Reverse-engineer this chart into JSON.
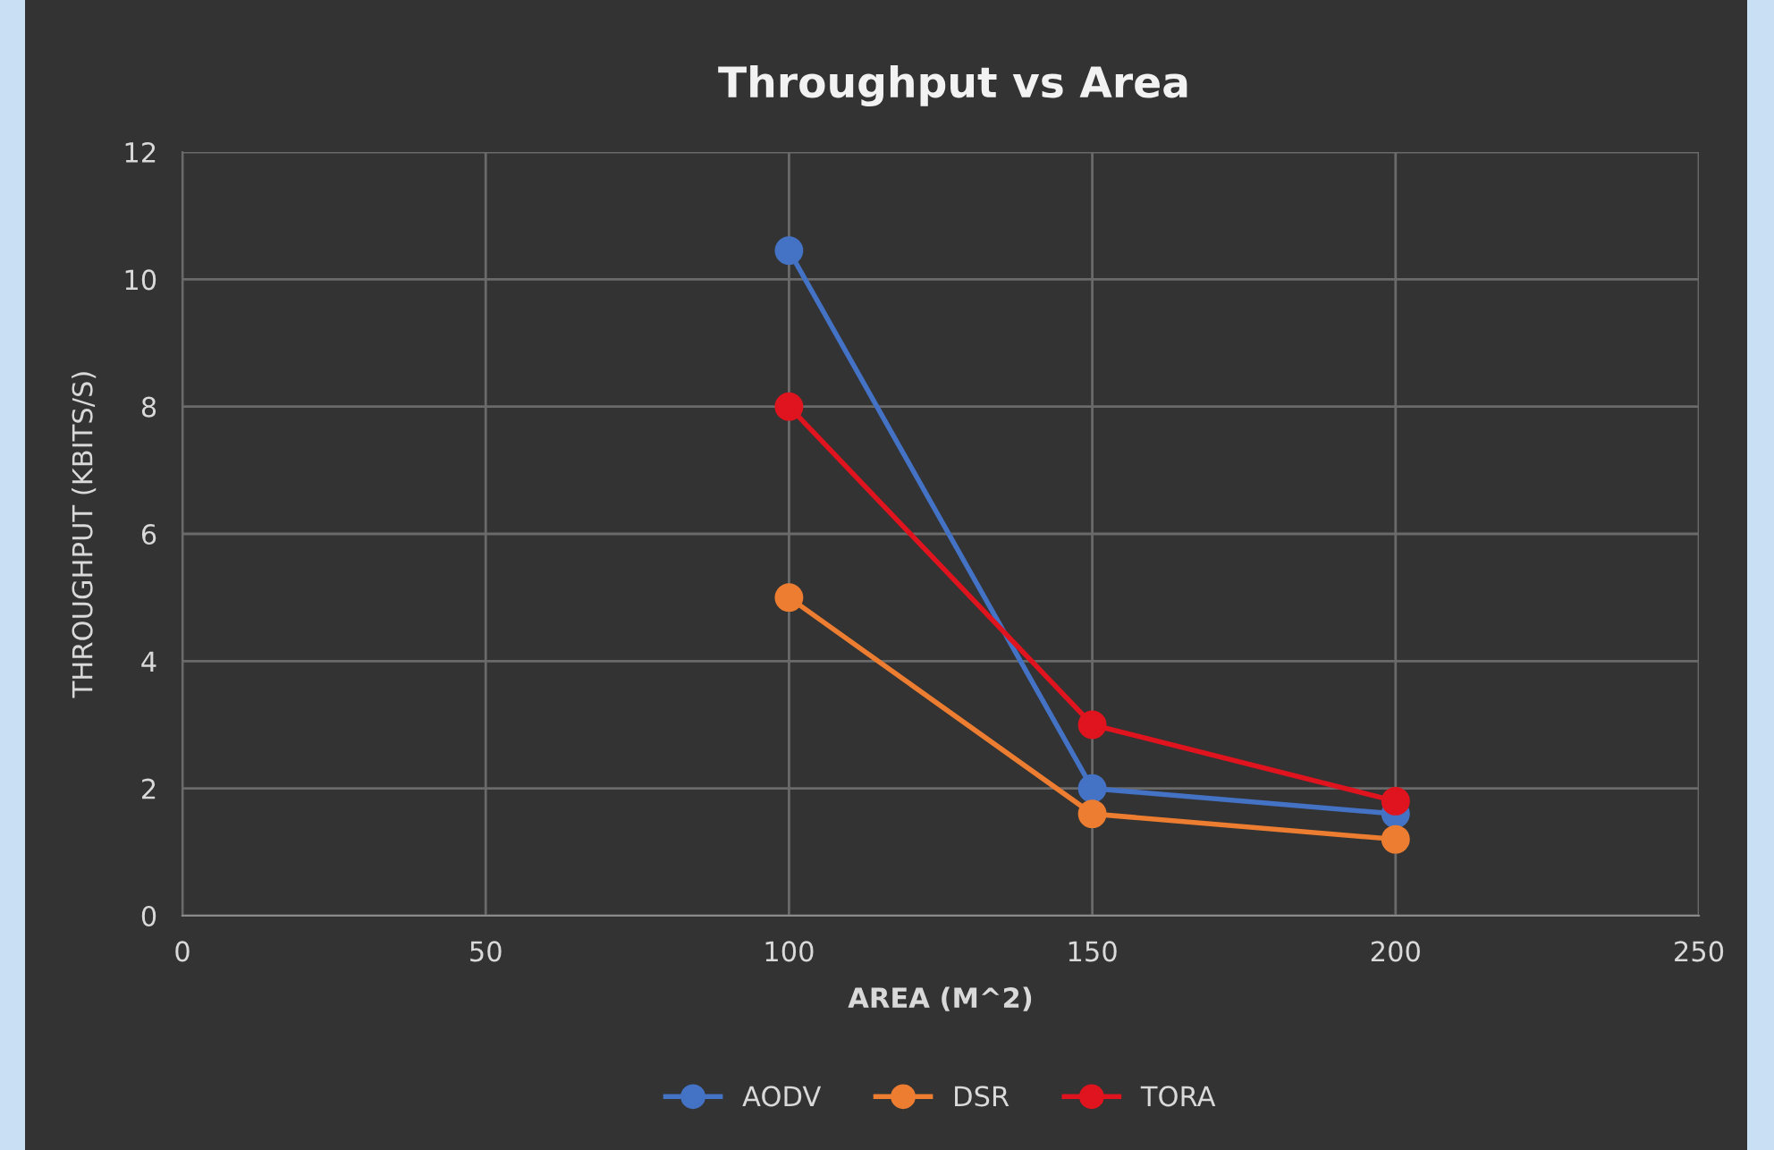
{
  "chart_data": {
    "type": "line",
    "title": "Throughput vs Area",
    "xlabel": "AREA (M^2)",
    "ylabel": "THROUGHPUT (KBITS/S)",
    "x": [
      100,
      150,
      200
    ],
    "series": [
      {
        "name": "AODV",
        "color": "#4472c4",
        "values": [
          10.45,
          2.0,
          1.6
        ]
      },
      {
        "name": "DSR",
        "color": "#ed7d31",
        "values": [
          5.0,
          1.6,
          1.2
        ]
      },
      {
        "name": "TORA",
        "color": "#e0141e",
        "values": [
          8.0,
          3.0,
          1.8
        ]
      }
    ],
    "xlim": [
      0,
      250
    ],
    "xticks": [
      0,
      50,
      100,
      150,
      200,
      250
    ],
    "ylim": [
      0,
      12
    ],
    "yticks": [
      0,
      2,
      4,
      6,
      8,
      10,
      12
    ],
    "grid": true,
    "legend": "bottom",
    "marker": "circle",
    "line_style": "solid"
  }
}
